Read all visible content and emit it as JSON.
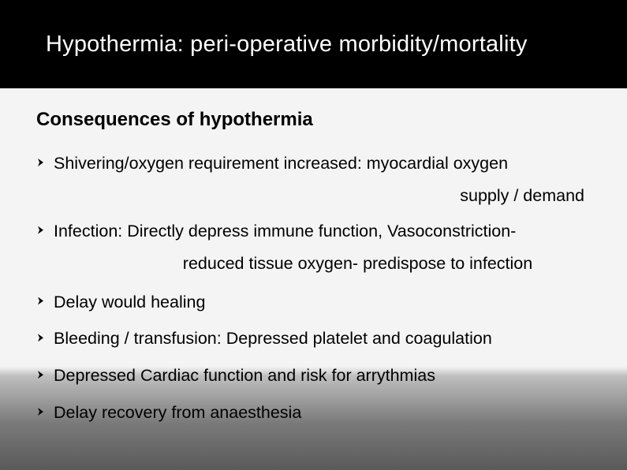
{
  "header": {
    "title": "Hypothermia: peri-operative morbidity/mortality"
  },
  "subtitle": "Consequences of hypothermia",
  "bullets": {
    "b1_line1": "Shivering/oxygen requirement increased: myocardial oxygen",
    "b1_line2": "supply / demand",
    "b2_line1": "Infection: Directly depress immune function, Vasoconstriction-",
    "b2_line2": "reduced tissue oxygen- predispose to infection",
    "b3": "Delay would healing",
    "b4": "Bleeding / transfusion: Depressed platelet and coagulation",
    "b5": "Depressed Cardiac function and risk for arrythmias",
    "b6": "Delay recovery from anaesthesia"
  }
}
